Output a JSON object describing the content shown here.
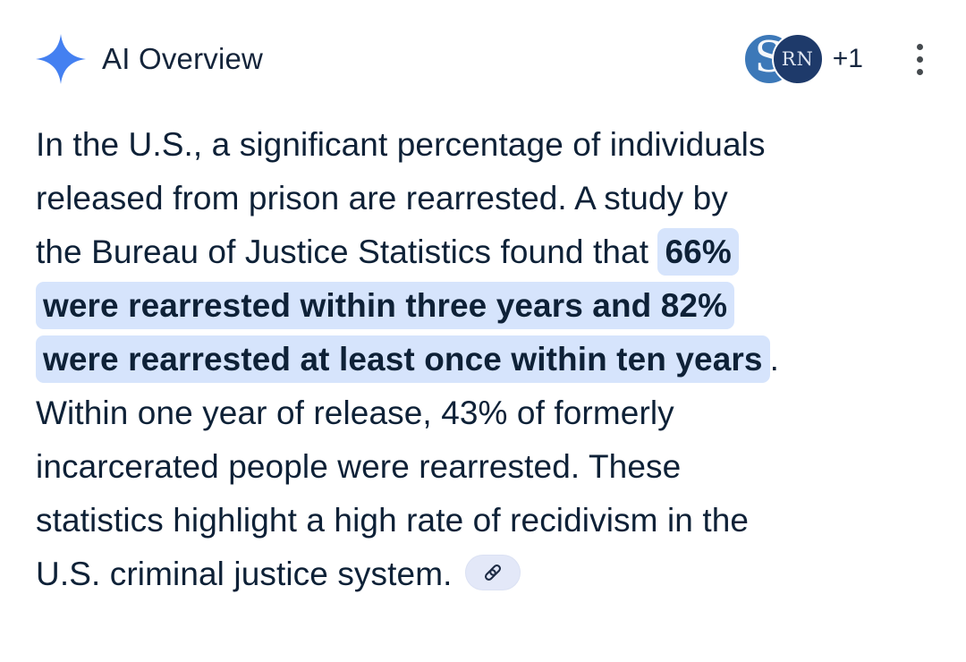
{
  "header": {
    "title": "AI Overview",
    "sources": {
      "avatars": [
        {
          "label": "S"
        },
        {
          "label": "RN"
        }
      ],
      "more_count": "+1"
    }
  },
  "icons": {
    "sparkle": "four-point-star",
    "menu": "kebab-vertical-dots",
    "chip": "link-chain"
  },
  "colors": {
    "accent_blue": "#4480f1",
    "text_navy": "#0e2137",
    "highlight_blue": "#d6e4fc",
    "chip_background": "#e3e8f8",
    "avatar1_background": "#3c78b8",
    "avatar2_background": "#1e3a6a",
    "menu_dots": "#454a4e"
  },
  "answer": {
    "lines": [
      {
        "segments": [
          {
            "t": "In the U.S., a significant percentage of individuals",
            "h": false
          }
        ]
      },
      {
        "segments": [
          {
            "t": "released from prison are rearrested. A study by",
            "h": false
          }
        ]
      },
      {
        "segments": [
          {
            "t": "the Bureau of Justice Statistics found that ",
            "h": false
          },
          {
            "t": "66%",
            "h": true
          }
        ]
      },
      {
        "segments": [
          {
            "t": "were rearrested within three years and 82%",
            "h": true
          }
        ]
      },
      {
        "segments": [
          {
            "t": "were rearrested at least once within ten years",
            "h": true
          },
          {
            "t": ".",
            "h": false
          }
        ]
      },
      {
        "segments": [
          {
            "t": "Within one year of release, 43% of formerly",
            "h": false
          }
        ]
      },
      {
        "segments": [
          {
            "t": "incarcerated people were rearrested. These",
            "h": false
          }
        ]
      },
      {
        "segments": [
          {
            "t": "statistics highlight a high rate of recidivism in the",
            "h": false
          }
        ]
      },
      {
        "segments": [
          {
            "t": "U.S. criminal justice system.",
            "h": false
          }
        ],
        "chip": true
      }
    ]
  }
}
